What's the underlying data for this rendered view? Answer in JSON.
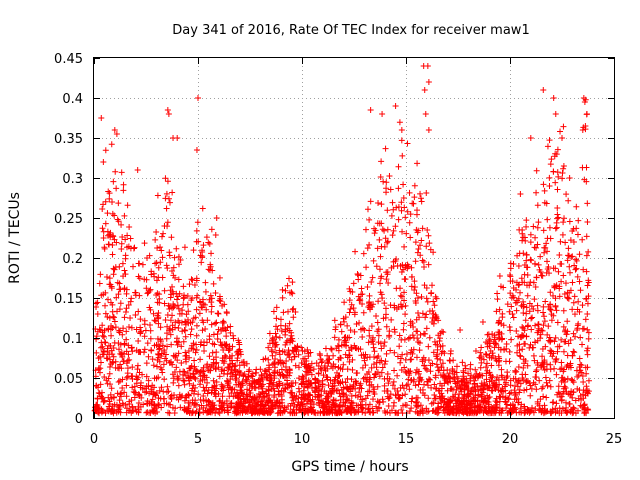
{
  "chart_data": {
    "type": "scatter",
    "title": "Day 341 of 2016, Rate Of TEC Index for receiver maw1",
    "xlabel": "GPS time / hours",
    "ylabel": "ROTI / TECUs",
    "xlim": [
      0,
      25
    ],
    "ylim": [
      0,
      0.45
    ],
    "x_ticks": [
      "0",
      "5",
      "10",
      "15",
      "20",
      "25"
    ],
    "y_ticks": [
      "0",
      "0.05",
      "0.1",
      "0.15",
      "0.2",
      "0.25",
      "0.3",
      "0.35",
      "0.4",
      "0.45"
    ],
    "x_tick_values": [
      0,
      5,
      10,
      15,
      20,
      25
    ],
    "y_tick_values": [
      0,
      0.05,
      0.1,
      0.15,
      0.2,
      0.25,
      0.3,
      0.35,
      0.4,
      0.45
    ],
    "grid": true,
    "marker": "plus",
    "color": "#ff0000",
    "envelope": [
      [
        0.0,
        0.12
      ],
      [
        0.5,
        0.28
      ],
      [
        1.0,
        0.3
      ],
      [
        1.5,
        0.25
      ],
      [
        2.0,
        0.22
      ],
      [
        2.5,
        0.2
      ],
      [
        3.0,
        0.22
      ],
      [
        3.5,
        0.3
      ],
      [
        4.0,
        0.22
      ],
      [
        4.5,
        0.18
      ],
      [
        5.0,
        0.2
      ],
      [
        5.5,
        0.22
      ],
      [
        6.0,
        0.18
      ],
      [
        6.5,
        0.1
      ],
      [
        7.0,
        0.08
      ],
      [
        7.5,
        0.05
      ],
      [
        8.0,
        0.07
      ],
      [
        8.5,
        0.1
      ],
      [
        9.0,
        0.13
      ],
      [
        9.5,
        0.15
      ],
      [
        10.0,
        0.08
      ],
      [
        10.5,
        0.06
      ],
      [
        11.0,
        0.07
      ],
      [
        11.5,
        0.09
      ],
      [
        12.0,
        0.12
      ],
      [
        12.5,
        0.17
      ],
      [
        13.0,
        0.22
      ],
      [
        13.5,
        0.25
      ],
      [
        14.0,
        0.3
      ],
      [
        14.5,
        0.33
      ],
      [
        15.0,
        0.34
      ],
      [
        15.5,
        0.3
      ],
      [
        16.0,
        0.26
      ],
      [
        16.5,
        0.14
      ],
      [
        17.0,
        0.07
      ],
      [
        17.5,
        0.06
      ],
      [
        18.0,
        0.05
      ],
      [
        18.5,
        0.07
      ],
      [
        19.0,
        0.1
      ],
      [
        19.5,
        0.14
      ],
      [
        20.0,
        0.18
      ],
      [
        20.5,
        0.22
      ],
      [
        21.0,
        0.24
      ],
      [
        21.5,
        0.28
      ],
      [
        22.0,
        0.3
      ],
      [
        22.5,
        0.32
      ],
      [
        23.0,
        0.28
      ],
      [
        23.5,
        0.35
      ],
      [
        23.8,
        0.32
      ]
    ],
    "outliers": [
      [
        0.35,
        0.375
      ],
      [
        0.45,
        0.32
      ],
      [
        1.0,
        0.36
      ],
      [
        1.1,
        0.355
      ],
      [
        2.1,
        0.31
      ],
      [
        3.55,
        0.385
      ],
      [
        3.6,
        0.38
      ],
      [
        3.8,
        0.35
      ],
      [
        4.0,
        0.35
      ],
      [
        5.0,
        0.4
      ],
      [
        4.95,
        0.335
      ],
      [
        5.9,
        0.25
      ],
      [
        13.3,
        0.385
      ],
      [
        13.85,
        0.38
      ],
      [
        14.5,
        0.39
      ],
      [
        14.8,
        0.36
      ],
      [
        15.85,
        0.44
      ],
      [
        16.05,
        0.44
      ],
      [
        15.9,
        0.41
      ],
      [
        16.1,
        0.42
      ],
      [
        15.95,
        0.38
      ],
      [
        16.1,
        0.36
      ],
      [
        21.6,
        0.41
      ],
      [
        22.1,
        0.4
      ],
      [
        22.2,
        0.38
      ],
      [
        22.5,
        0.35
      ],
      [
        23.55,
        0.4
      ],
      [
        23.6,
        0.395
      ],
      [
        23.7,
        0.38
      ],
      [
        23.5,
        0.36
      ],
      [
        21.0,
        0.35
      ],
      [
        20.5,
        0.28
      ],
      [
        18.7,
        0.12
      ],
      [
        17.6,
        0.11
      ]
    ]
  }
}
